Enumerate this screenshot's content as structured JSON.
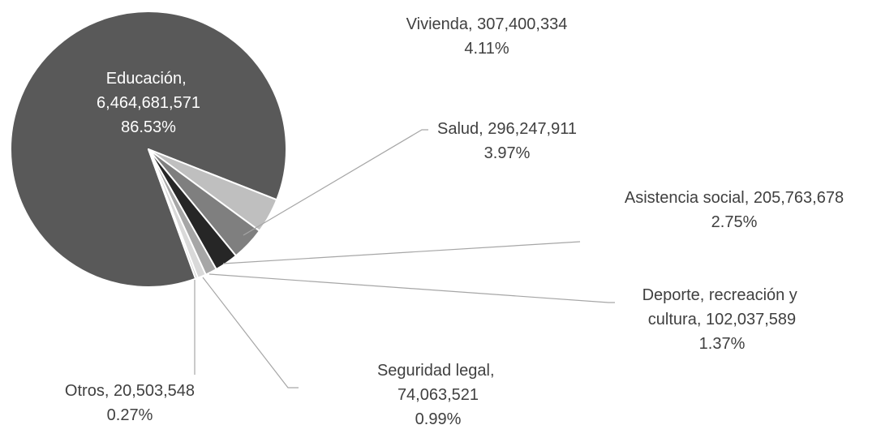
{
  "chart_data": {
    "type": "pie",
    "categories": [
      "Educación",
      "Vivienda",
      "Salud",
      "Asistencia social",
      "Deporte, recreación y cultura",
      "Seguridad legal",
      "Otros"
    ],
    "values": [
      6464681571,
      307400334,
      296247911,
      205763678,
      102037589,
      74063521,
      20503548
    ],
    "value_labels": [
      "6,464,681,571",
      "307,400,334",
      "296,247,911",
      "205,763,678",
      "102,037,589",
      "74,063,521",
      "20,503,548"
    ],
    "percents": [
      86.53,
      4.11,
      3.97,
      2.75,
      1.37,
      0.99,
      0.27
    ],
    "percent_labels": [
      "86.53%",
      "4.11%",
      "3.97%",
      "2.75%",
      "1.37%",
      "0.99%",
      "0.27%"
    ],
    "label_separator": ", ",
    "colors": [
      "#595959",
      "#bfbfbf",
      "#7f7f7f",
      "#262626",
      "#a6a6a6",
      "#d9d9d9",
      "#c8c8c8"
    ]
  }
}
